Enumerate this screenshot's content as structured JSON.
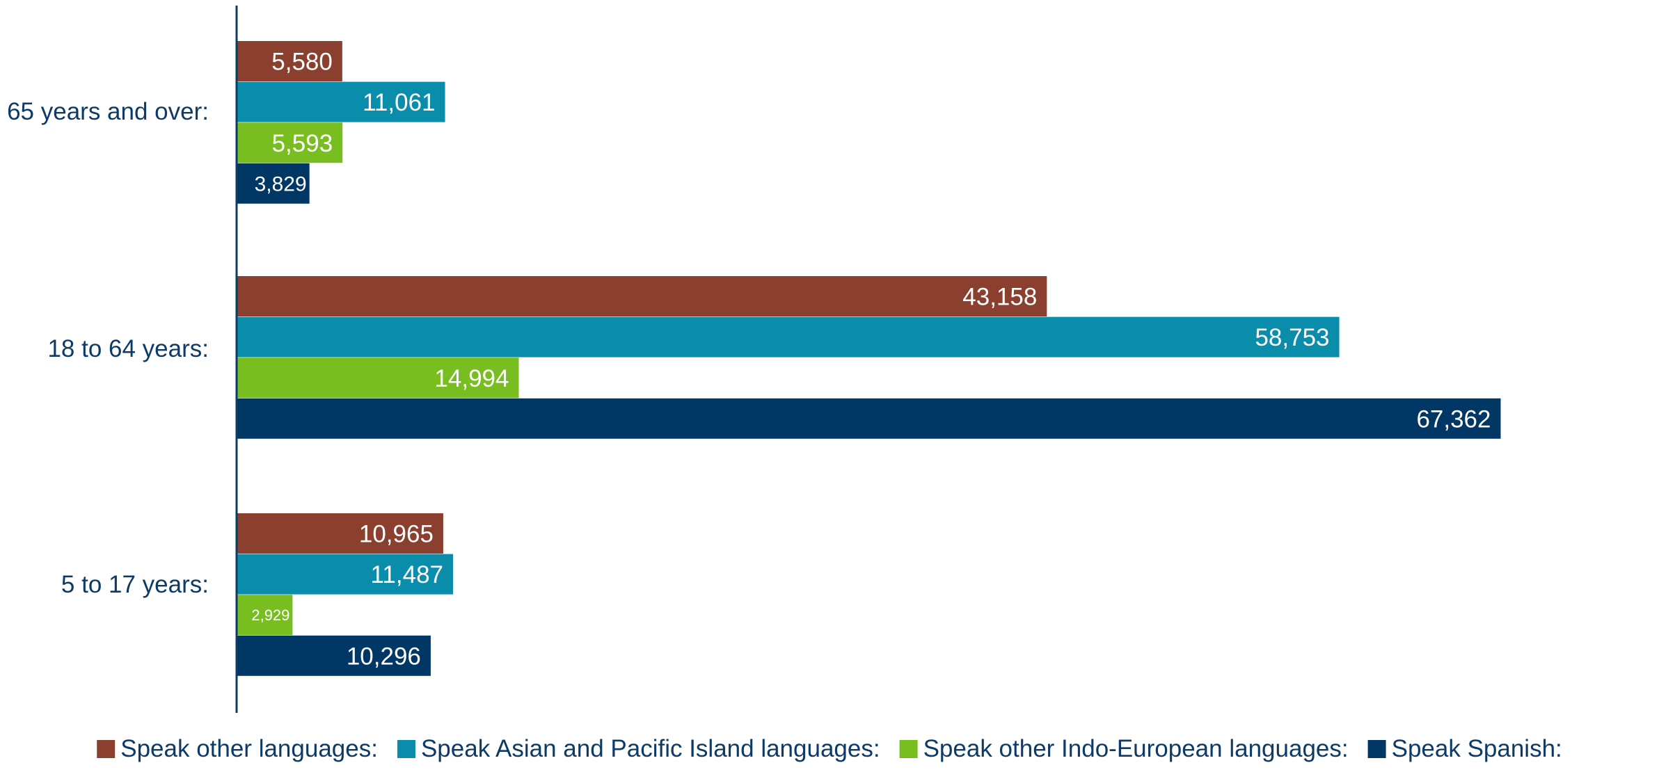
{
  "chart_data": {
    "type": "bar",
    "orientation": "horizontal",
    "categories": [
      "65 years and over:",
      "18 to 64 years:",
      "5 to 17 years:"
    ],
    "series": [
      {
        "name": "Speak other languages:",
        "color": "#8b3f2f",
        "values": [
          5580,
          43158,
          10965
        ],
        "labels": [
          "5,580",
          "43,158",
          "10,965"
        ]
      },
      {
        "name": "Speak Asian and Pacific Island languages:",
        "color": "#0a8dab",
        "values": [
          11061,
          58753,
          11487
        ],
        "labels": [
          "11,061",
          "58,753",
          "11,487"
        ]
      },
      {
        "name": "Speak other Indo-European languages:",
        "color": "#78be21",
        "values": [
          5593,
          14994,
          2929
        ],
        "labels": [
          "5,593",
          "14,994",
          "2,929"
        ]
      },
      {
        "name": "Speak Spanish:",
        "color": "#003764",
        "values": [
          3829,
          67362,
          10296
        ],
        "labels": [
          "3,829",
          "67,362",
          "10,296"
        ]
      }
    ],
    "xlim": [
      0,
      88000
    ],
    "gridlines": false,
    "data_labels": "inside-end",
    "legend_position": "bottom",
    "title": "",
    "xlabel": "",
    "ylabel": ""
  }
}
